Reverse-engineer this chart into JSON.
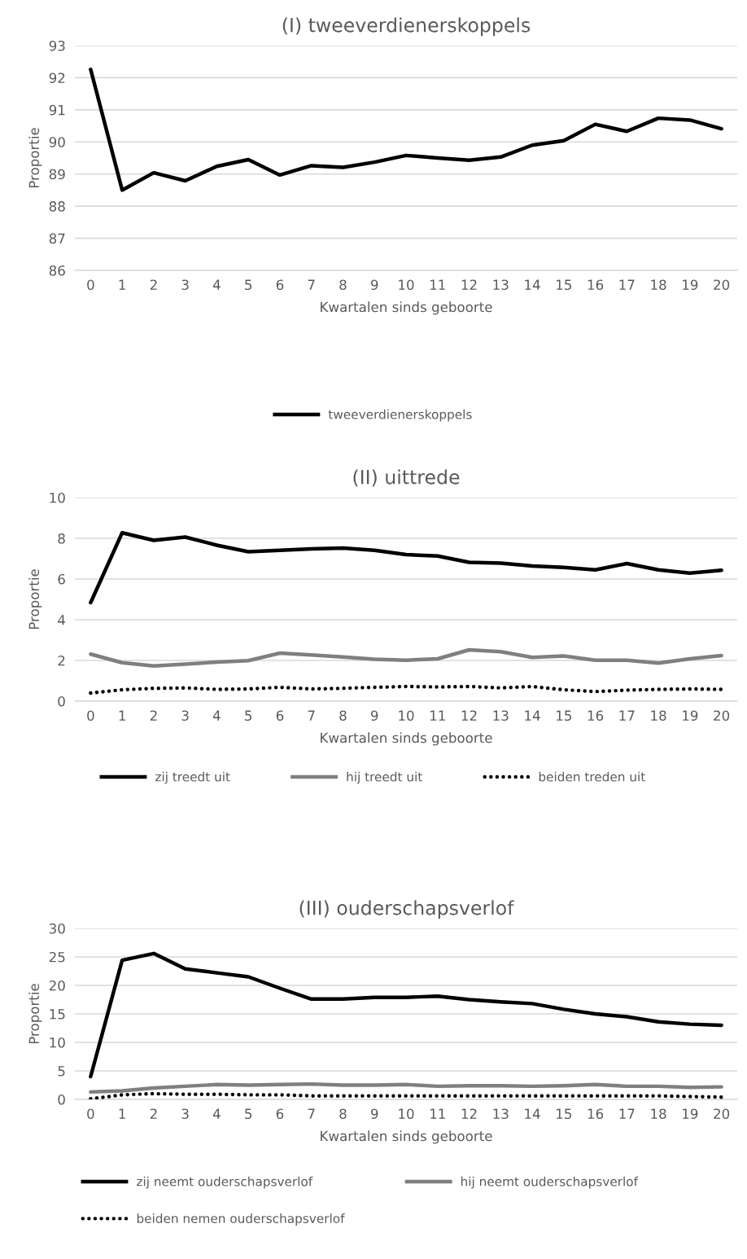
{
  "chart_data": [
    {
      "type": "line",
      "title": "(I) tweeverdienerskoppels",
      "xlabel": "Kwartalen sinds geboorte",
      "ylabel": "Proportie",
      "categories": [
        "0",
        "1",
        "2",
        "3",
        "4",
        "5",
        "6",
        "7",
        "8",
        "9",
        "10",
        "11",
        "12",
        "13",
        "14",
        "15",
        "16",
        "17",
        "18",
        "19",
        "20"
      ],
      "ylim": [
        86,
        93
      ],
      "yticks": [
        86,
        87,
        88,
        89,
        90,
        91,
        92,
        93
      ],
      "grid": "y",
      "legend": "bottom",
      "marker": "none",
      "series": [
        {
          "name": "tweeverdienerskoppels",
          "color": "#000000",
          "line_style": "solid",
          "values": [
            92.26,
            88.5,
            89.04,
            88.79,
            89.24,
            89.45,
            88.97,
            89.26,
            89.21,
            89.37,
            89.58,
            89.5,
            89.43,
            89.53,
            89.9,
            90.04,
            90.55,
            90.33,
            90.74,
            90.68,
            90.41
          ]
        }
      ]
    },
    {
      "type": "line",
      "title": "(II) uittrede",
      "xlabel": "Kwartalen sinds geboorte",
      "ylabel": "Proportie",
      "categories": [
        "0",
        "1",
        "2",
        "3",
        "4",
        "5",
        "6",
        "7",
        "8",
        "9",
        "10",
        "11",
        "12",
        "13",
        "14",
        "15",
        "16",
        "17",
        "18",
        "19",
        "20"
      ],
      "ylim": [
        0,
        10
      ],
      "yticks": [
        0,
        2,
        4,
        6,
        8,
        10
      ],
      "grid": "y",
      "legend": "bottom",
      "marker": "none",
      "series": [
        {
          "name": "zij treedt uit",
          "color": "#000000",
          "line_style": "solid",
          "values": [
            4.84,
            8.27,
            7.9,
            8.06,
            7.66,
            7.34,
            7.41,
            7.48,
            7.52,
            7.41,
            7.2,
            7.13,
            6.82,
            6.78,
            6.64,
            6.57,
            6.45,
            6.76,
            6.45,
            6.29,
            6.43
          ]
        },
        {
          "name": "hij treedt uit",
          "color": "#7f7f7f",
          "line_style": "solid",
          "values": [
            2.31,
            1.89,
            1.73,
            1.82,
            1.92,
            1.99,
            2.36,
            2.27,
            2.17,
            2.06,
            2.01,
            2.08,
            2.52,
            2.43,
            2.15,
            2.22,
            2.01,
            2.01,
            1.87,
            2.08,
            2.24
          ]
        },
        {
          "name": "beiden treden uit",
          "color": "#000000",
          "line_style": "dotted",
          "values": [
            0.4,
            0.56,
            0.63,
            0.65,
            0.58,
            0.6,
            0.68,
            0.6,
            0.63,
            0.68,
            0.72,
            0.7,
            0.72,
            0.65,
            0.72,
            0.56,
            0.47,
            0.54,
            0.58,
            0.6,
            0.58
          ]
        }
      ]
    },
    {
      "type": "line",
      "title": "(III) ouderschapsverlof",
      "xlabel": "Kwartalen sinds geboorte",
      "ylabel": "Proportie",
      "categories": [
        "0",
        "1",
        "2",
        "3",
        "4",
        "5",
        "6",
        "7",
        "8",
        "9",
        "10",
        "11",
        "12",
        "13",
        "14",
        "15",
        "16",
        "17",
        "18",
        "19",
        "20"
      ],
      "ylim": [
        0,
        30
      ],
      "yticks": [
        0,
        5,
        10,
        15,
        20,
        25,
        30
      ],
      "grid": "y",
      "legend": "bottom",
      "marker": "none",
      "series": [
        {
          "name": "zij neemt ouderschapsverlof",
          "color": "#000000",
          "line_style": "solid",
          "values": [
            4.0,
            24.4,
            25.6,
            22.9,
            22.2,
            21.5,
            19.5,
            17.6,
            17.6,
            17.9,
            17.9,
            18.1,
            17.5,
            17.1,
            16.8,
            15.8,
            15.0,
            14.5,
            13.6,
            13.2,
            13.0
          ]
        },
        {
          "name": "hij neemt ouderschapsverlof",
          "color": "#7f7f7f",
          "line_style": "solid",
          "values": [
            1.3,
            1.5,
            2.0,
            2.3,
            2.6,
            2.5,
            2.6,
            2.7,
            2.5,
            2.5,
            2.6,
            2.3,
            2.4,
            2.4,
            2.3,
            2.4,
            2.6,
            2.3,
            2.3,
            2.1,
            2.2
          ]
        },
        {
          "name": "beiden nemen ouderschapsverlof",
          "color": "#000000",
          "line_style": "dotted",
          "values": [
            0.1,
            0.8,
            1.0,
            0.9,
            0.9,
            0.8,
            0.8,
            0.6,
            0.6,
            0.6,
            0.6,
            0.6,
            0.6,
            0.6,
            0.6,
            0.6,
            0.6,
            0.6,
            0.6,
            0.5,
            0.4
          ]
        }
      ]
    }
  ]
}
